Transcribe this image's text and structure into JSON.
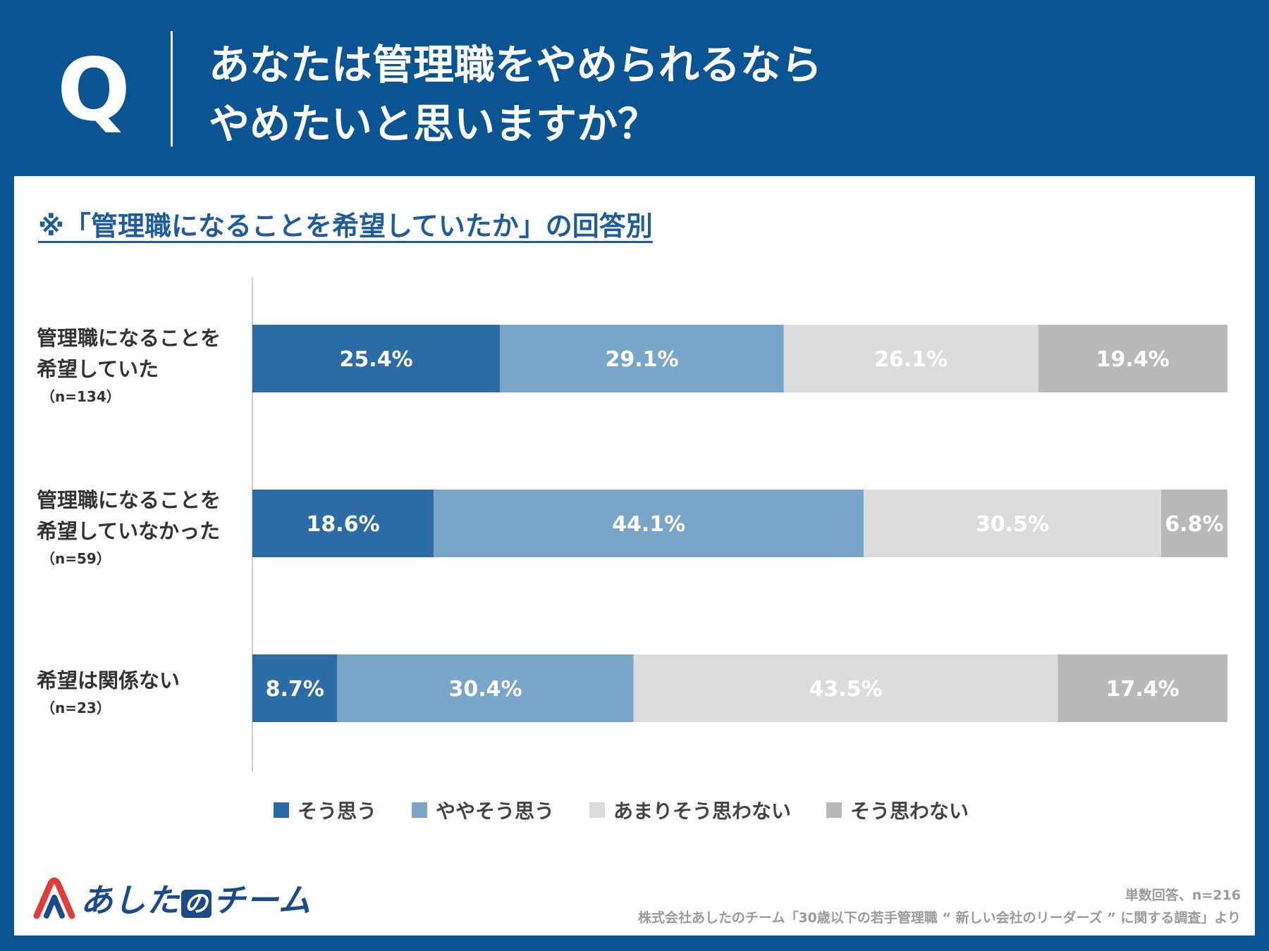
{
  "header": {
    "q_letter": "Q",
    "title_lines": [
      "あなたは管理職をやめられるなら",
      "やめたいと思いますか？"
    ]
  },
  "subtitle": "※「管理職になることを希望していたか」の回答別",
  "colors": {
    "background": "#0a5494",
    "s1": "#2b6ca6",
    "s2": "#79a5c8",
    "s3": "#dcdcdc",
    "s4": "#b9b9b9",
    "logo_red": "#e03c3c",
    "logo_blue": "#1a4a8a"
  },
  "chart_data": {
    "type": "bar",
    "orientation": "horizontal",
    "stacked": "100%",
    "categories": [
      "管理職になることを希望していた",
      "管理職になることを希望していなかった",
      "希望は関係ない"
    ],
    "series": [
      {
        "name": "そう思う",
        "values": [
          25.4,
          18.6,
          8.7
        ]
      },
      {
        "name": "ややそう思う",
        "values": [
          29.1,
          44.1,
          30.4
        ]
      },
      {
        "name": "あまりそう思わない",
        "values": [
          26.1,
          30.5,
          43.5
        ]
      },
      {
        "name": "そう思わない",
        "values": [
          19.4,
          6.8,
          17.4
        ]
      }
    ],
    "value_labels": [
      [
        "25.4%",
        "29.1%",
        "26.1%",
        "19.4%"
      ],
      [
        "18.6%",
        "44.1%",
        "30.5%",
        "6.8%"
      ],
      [
        "8.7%",
        "30.4%",
        "43.5%",
        "17.4%"
      ]
    ],
    "xlim": [
      0,
      100
    ],
    "legend_position": "bottom",
    "grid": false
  },
  "row_labels": [
    {
      "lines": [
        "管理職になることを",
        "希望していた"
      ],
      "n": "（n=134）"
    },
    {
      "lines": [
        "管理職になることを",
        "希望していなかった"
      ],
      "n": "（n=59）"
    },
    {
      "lines": [
        "希望は関係ない"
      ],
      "n": "（n=23）"
    }
  ],
  "legend": [
    "そう思う",
    "ややそう思う",
    "あまりそう思わない",
    "そう思わない"
  ],
  "logo": {
    "part1": "あした",
    "part2": "の",
    "part3": "チーム"
  },
  "footnotes": {
    "line1": "単数回答、n=216",
    "line2": "株式会社あしたのチーム「30歳以下の若手管理職 “ 新しい会社のリーダーズ ” に関する調査」より"
  }
}
